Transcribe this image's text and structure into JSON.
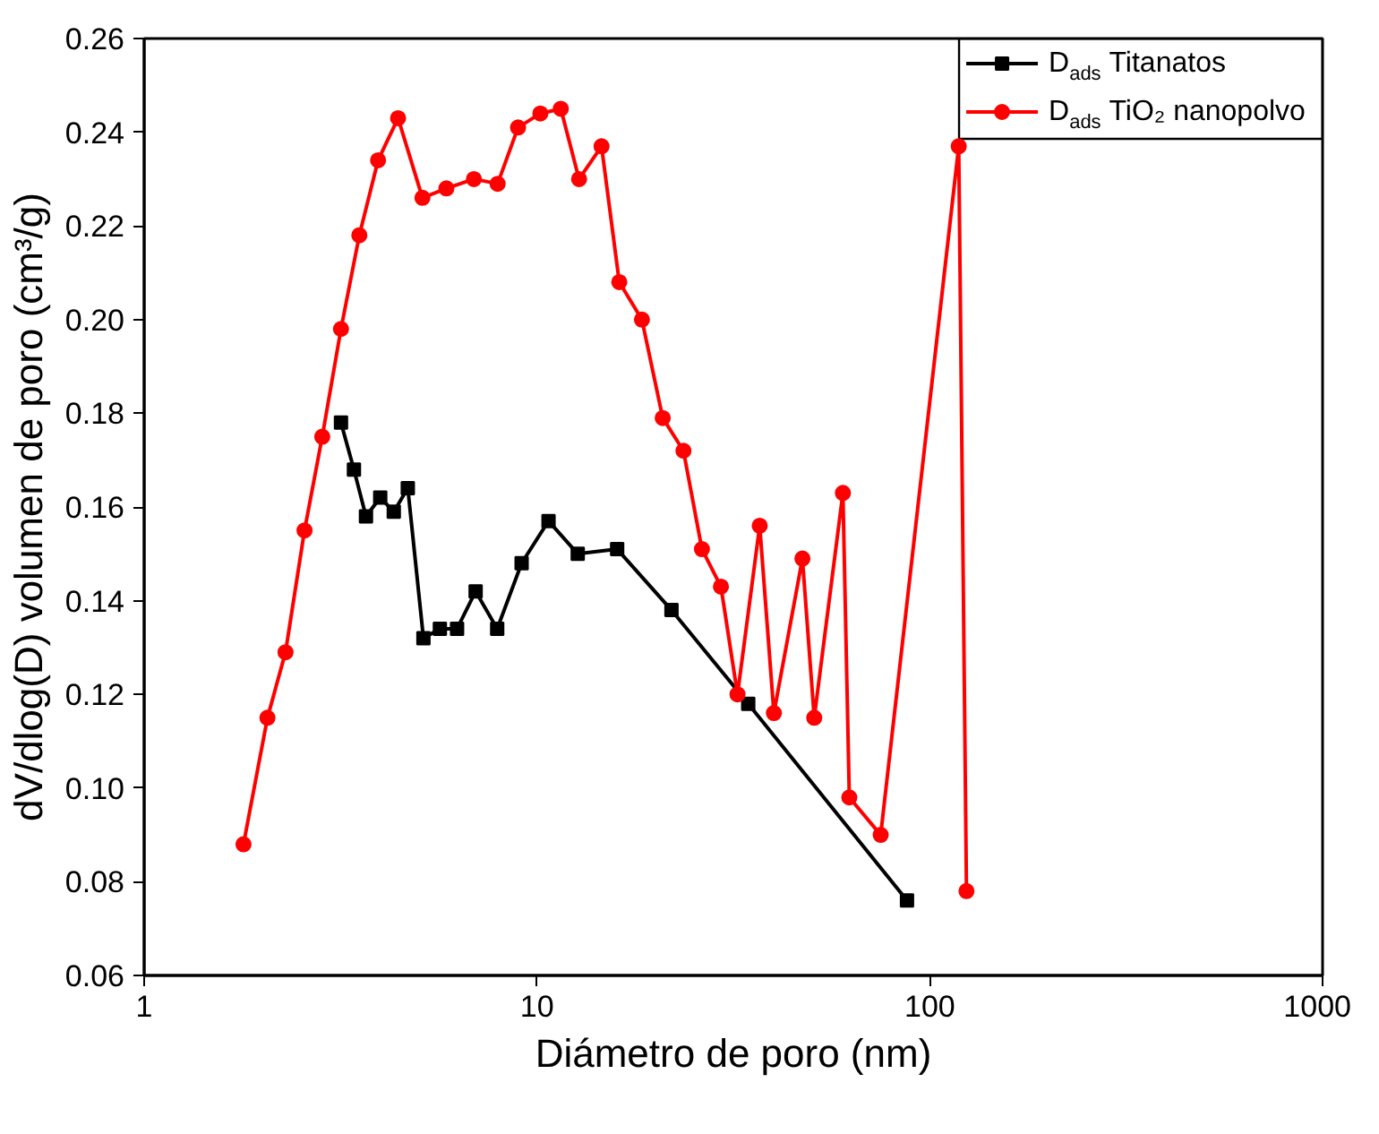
{
  "chart_data": {
    "type": "line",
    "xlabel": "Diámetro de poro (nm)",
    "ylabel": "dV/dlog(D) volumen de poro (cm³/g)",
    "log": "x",
    "xlim": [
      1,
      1000
    ],
    "xticks": [
      1,
      10,
      100,
      1000
    ],
    "ylim": [
      0.06,
      0.26
    ],
    "yticks": [
      {
        "value": 0.06,
        "label": "0.06"
      },
      {
        "value": 0.08,
        "label": "0.08"
      },
      {
        "value": 0.1,
        "label": "0.10"
      },
      {
        "value": 0.12,
        "label": "0.12"
      },
      {
        "value": 0.14,
        "label": "0.14"
      },
      {
        "value": 0.16,
        "label": "0.16"
      },
      {
        "value": 0.18,
        "label": "0.18"
      },
      {
        "value": 0.2,
        "label": "0.20"
      },
      {
        "value": 0.22,
        "label": "0.22"
      },
      {
        "value": 0.24,
        "label": "0.24"
      },
      {
        "value": 0.26,
        "label": "0.26"
      }
    ],
    "grid": false,
    "legend": "top right",
    "series": [
      {
        "name": "D$_{ads}$ Titanatos",
        "color": "#000000",
        "marker": "square",
        "x": [
          3.17,
          3.42,
          3.67,
          3.99,
          4.32,
          4.69,
          5.14,
          5.66,
          6.26,
          6.98,
          7.92,
          9.14,
          10.7,
          12.7,
          16.0,
          22.0,
          34.5,
          87.5
        ],
        "values": [
          0.178,
          0.168,
          0.158,
          0.162,
          0.159,
          0.164,
          0.132,
          0.134,
          0.134,
          0.142,
          0.134,
          0.148,
          0.157,
          0.15,
          0.151,
          0.138,
          0.118,
          0.076
        ]
      },
      {
        "name": "D$_{ads}$ TiO₂ nanopolvo",
        "color": "#ff0000",
        "marker": "circle",
        "x": [
          1.79,
          2.06,
          2.29,
          2.56,
          2.84,
          3.17,
          3.53,
          3.94,
          4.43,
          5.11,
          5.88,
          6.91,
          7.94,
          8.95,
          10.2,
          11.5,
          12.8,
          14.6,
          16.2,
          18.5,
          20.9,
          23.6,
          26.3,
          29.4,
          32.4,
          36.9,
          40.1,
          47.4,
          50.8,
          60.1,
          62.4,
          75.0,
          118.5,
          124
        ],
        "values": [
          0.088,
          0.115,
          0.129,
          0.155,
          0.175,
          0.198,
          0.218,
          0.234,
          0.243,
          0.226,
          0.228,
          0.23,
          0.229,
          0.241,
          0.244,
          0.245,
          0.23,
          0.237,
          0.208,
          0.2,
          0.179,
          0.172,
          0.151,
          0.143,
          0.12,
          0.156,
          0.116,
          0.149,
          0.115,
          0.163,
          0.098,
          0.09,
          0.237,
          0.078
        ]
      }
    ]
  }
}
